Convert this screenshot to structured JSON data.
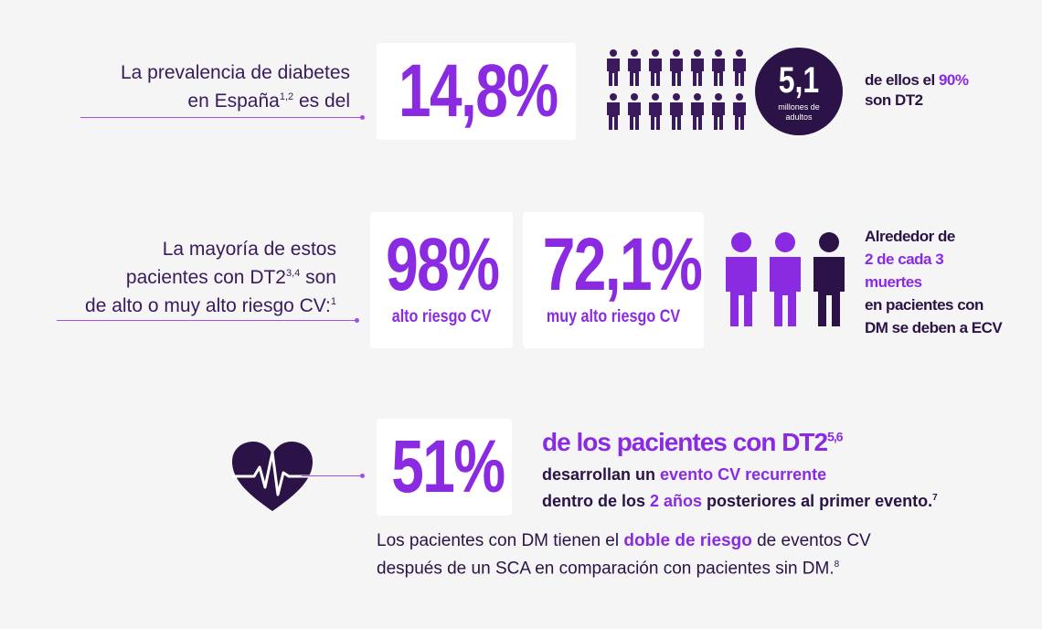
{
  "colors": {
    "accent": "#8a2be2",
    "dark": "#3a1a5c",
    "card": "#ffffff",
    "bg": "#f5f5f5"
  },
  "row1": {
    "label_line1": "La prevalencia de diabetes",
    "label_line2_a": "en España",
    "label_line2_sup": "1,2",
    "label_line2_b": " es del",
    "stat": "14,8%",
    "circle_value": "5,1",
    "circle_caption_1": "millones de",
    "circle_caption_2": "adultos",
    "people_icon": "person-icon",
    "note_a": "de ellos el ",
    "note_pct": "90%",
    "note_b": "son DT2"
  },
  "row2": {
    "label_line1": "La mayoría de estos",
    "label_line2_a": "pacientes con DT2",
    "label_line2_sup": "3,4",
    "label_line2_b": " son",
    "label_line3_a": "de alto o muy alto riesgo CV:",
    "label_line3_sup": "1",
    "card1_stat": "98%",
    "card1_sub": "alto riesgo CV",
    "card2_stat": "72,1%",
    "card2_sub": "muy alto riesgo CV",
    "note_l1": "Alrededor de",
    "note_l2": "2 de cada 3",
    "note_l3": "muertes",
    "note_l4": "en pacientes con",
    "note_l5": "DM se deben a ECV"
  },
  "row3": {
    "icon": "heart-ecg-icon",
    "stat": "51%",
    "headline": "de los pacientes con DT2",
    "headline_sup": "5,6",
    "l1_a": "desarrollan un ",
    "l1_b": "evento CV recurrente",
    "l2_a": "dentro de los ",
    "l2_b": "2 años",
    "l2_c": " posteriores al primer evento.",
    "l2_sup": "7",
    "foot1_a": "Los pacientes con DM tienen el ",
    "foot1_b": "doble de riesgo",
    "foot1_c": " de eventos CV",
    "foot2": "después de un SCA en comparación con pacientes sin DM.",
    "foot2_sup": "8"
  }
}
